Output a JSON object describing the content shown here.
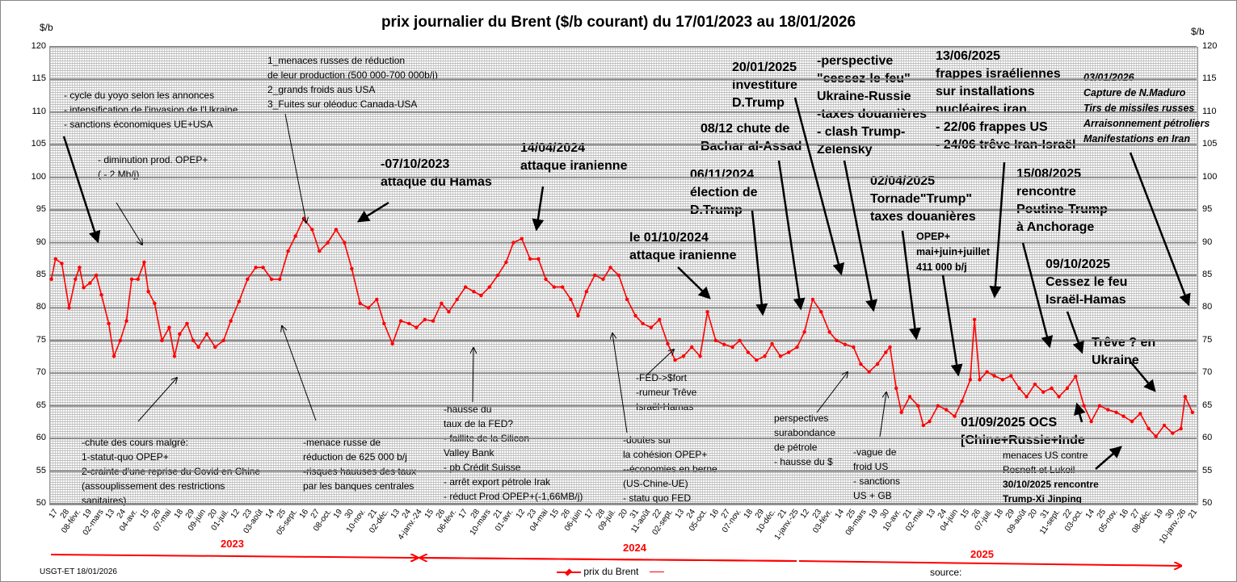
{
  "chart_data": {
    "type": "line",
    "title": "prix  journalier du  Brent ($/b courant) du 17/01/2023 au  18/01/2026",
    "ylabel_left": "$/b",
    "ylabel_right": "$/b",
    "ylim": [
      50,
      120
    ],
    "yticks": [
      50,
      55,
      60,
      65,
      70,
      75,
      80,
      85,
      90,
      95,
      100,
      105,
      110,
      115,
      120
    ],
    "x_unit": "days since 17/01/2023",
    "xlim": [
      0,
      1100
    ],
    "xtick_labels": [
      "17",
      "28",
      "08-févr.",
      "19",
      "02-mars",
      "13",
      "24",
      "04-avr.",
      "15",
      "26",
      "07-mai",
      "18",
      "29",
      "09-juin",
      "20",
      "01-juil.",
      "12",
      "23",
      "03-août",
      "14",
      "25",
      "05-sept.",
      "16",
      "27",
      "08-oct.",
      "19",
      "30",
      "10-nov.",
      "21",
      "02-déc.",
      "13",
      "24",
      "4-janv.-24",
      "15",
      "26",
      "06-févr.",
      "17",
      "28",
      "10-mars",
      "21",
      "01-avr.",
      "12",
      "23",
      "04-mai",
      "15",
      "26",
      "06-juin",
      "17",
      "28",
      "09-juil.",
      "20",
      "31",
      "11-août",
      "22",
      "02-sept.",
      "13",
      "24",
      "05-oct.",
      "16",
      "27",
      "07-nov.",
      "18",
      "29",
      "10-déc.",
      "21",
      "1-janv.-25",
      "12",
      "23",
      "03-févr.",
      "14",
      "25",
      "08-mars",
      "19",
      "30",
      "10-avr.",
      "21",
      "02-mai",
      "13",
      "24",
      "04-juin",
      "15",
      "26",
      "07-juil.",
      "18",
      "29",
      "09-août",
      "20",
      "31",
      "11-sept.",
      "22",
      "03-oct.",
      "14",
      "25",
      "05-nov.",
      "16",
      "27",
      "08-déc.",
      "19",
      "30",
      "10-janv.-26",
      "21"
    ],
    "years": [
      "2023",
      "2024",
      "2025"
    ],
    "series": [
      {
        "name": "prix du Brent",
        "color": "#ff0000",
        "x": [
          2,
          6,
          12,
          19,
          25,
          29,
          33,
          39,
          45,
          50,
          57,
          62,
          68,
          74,
          79,
          85,
          91,
          95,
          101,
          108,
          115,
          120,
          125,
          132,
          138,
          143,
          151,
          159,
          167,
          174,
          182,
          190,
          198,
          205,
          213,
          221,
          229,
          236,
          244,
          252,
          259,
          267,
          275,
          283,
          290,
          298,
          306,
          314,
          321,
          329,
          337,
          345,
          352,
          360,
          368,
          376,
          383,
          391,
          399,
          407,
          414,
          422,
          430,
          438,
          445,
          453,
          461,
          469,
          476,
          484,
          492,
          500,
          507,
          515,
          523,
          531,
          538,
          546,
          554,
          562,
          569,
          577,
          585,
          593,
          600,
          608,
          616,
          624,
          631,
          639,
          647,
          655,
          662,
          670,
          678,
          686,
          693,
          701,
          709,
          717,
          724,
          732,
          740,
          748,
          755,
          763,
          771,
          778,
          786,
          794,
          802,
          806,
          812,
          817,
          825,
          833,
          838,
          844,
          852,
          860,
          868,
          875,
          883,
          887,
          892,
          899,
          906,
          914,
          922,
          930,
          937,
          945,
          953,
          961,
          968,
          976,
          984,
          992,
          999,
          1007,
          1015,
          1023,
          1030,
          1038,
          1046,
          1054,
          1061,
          1069,
          1077,
          1085,
          1089,
          1096
        ],
        "values": [
          84.4,
          87.5,
          86.8,
          80.0,
          84.4,
          86.2,
          83.1,
          83.8,
          85.0,
          82.0,
          77.6,
          72.6,
          75.0,
          78.0,
          84.4,
          84.4,
          87.0,
          82.5,
          80.7,
          75.0,
          77.0,
          72.6,
          76.0,
          77.6,
          75.0,
          74.0,
          76.0,
          74.0,
          75.0,
          78.0,
          81.0,
          84.4,
          86.2,
          86.2,
          84.4,
          84.4,
          88.7,
          91.0,
          93.7,
          92.0,
          88.7,
          90.0,
          92.0,
          90.0,
          86.0,
          80.7,
          80.0,
          81.3,
          77.6,
          74.5,
          78.0,
          77.6,
          77.0,
          78.2,
          78.0,
          80.7,
          79.4,
          81.3,
          83.2,
          82.5,
          81.9,
          83.2,
          85.0,
          87.0,
          90.0,
          90.6,
          87.5,
          87.5,
          84.4,
          83.2,
          83.2,
          81.3,
          78.8,
          82.5,
          85.0,
          84.4,
          86.2,
          85.0,
          81.3,
          78.8,
          77.6,
          77.0,
          78.2,
          74.5,
          72.0,
          72.6,
          74.0,
          72.6,
          79.4,
          75.0,
          74.4,
          74.0,
          75.0,
          73.2,
          72.0,
          72.6,
          74.5,
          72.6,
          73.2,
          74.0,
          76.3,
          81.3,
          79.4,
          76.3,
          75.0,
          74.4,
          74.0,
          71.4,
          70.2,
          71.4,
          73.2,
          74.0,
          67.7,
          64.0,
          66.4,
          65.0,
          62.0,
          62.6,
          65.0,
          64.4,
          63.4,
          65.7,
          69.0,
          78.2,
          69.0,
          70.2,
          69.6,
          69.0,
          69.6,
          67.7,
          66.4,
          68.3,
          67.1,
          67.7,
          66.4,
          67.7,
          69.5,
          65.0,
          62.6,
          65.0,
          64.4,
          64.0,
          63.4,
          62.6,
          63.8,
          61.5,
          60.3,
          62.0,
          60.8,
          61.5,
          66.4,
          64.0
        ]
      }
    ],
    "legend": {
      "position": "bottom-center",
      "entries": [
        "prix du Brent",
        ""
      ]
    },
    "annotations": [
      {
        "lines": [
          "- cycle du yoyo selon les annonces",
          "- intensification de l'invasion de l'Ukraine",
          "- sanctions économiques UE+USA"
        ]
      },
      {
        "lines": [
          "1_menaces russes de réduction",
          "de leur production (500 000-700  000b/j)",
          "2_grands froids aus USA",
          "3_Fuites sur oléoduc Canada-USA"
        ]
      },
      {
        "lines": [
          "-  diminution prod. OPEP+",
          "( - 2 Mb/j)"
        ]
      },
      {
        "lines": [
          "-07/10/2023",
          "attaque  du Hamas"
        ]
      },
      {
        "lines": [
          "14/04/2024",
          "attaque iranienne"
        ]
      },
      {
        "lines": [
          "le 01/10/2024",
          "attaque iranienne"
        ]
      },
      {
        "lines": [
          "06/11/2024",
          "élection de",
          "D.Trump"
        ]
      },
      {
        "lines": [
          "08/12 chute de",
          "Bachar al-Assad"
        ]
      },
      {
        "lines": [
          "20/01/2025",
          "investiture",
          "D.Trump"
        ]
      },
      {
        "lines": [
          "-perspective",
          "\"cessez-le-feu\"",
          "Ukraine-Russie",
          "-taxes douanières",
          "- clash Trump-",
          "Zelensky"
        ]
      },
      {
        "lines": [
          "13/06/2025",
          "frappes  israéliennes",
          "sur installations",
          "nucléaires iran.",
          "- 22/06 frappes US",
          "- 24/06 trêve Iran-Israël"
        ]
      },
      {
        "lines": [
          "03/01/2026",
          "Capture de N.Maduro",
          "Tirs de missiles russes",
          "Arraisonnement pétroliers",
          "Manifestations en Iran"
        ]
      },
      {
        "lines": [
          "02/04/2025",
          "Tornade\"Trump\"",
          "taxes douanières"
        ]
      },
      {
        "lines": [
          "OPEP+",
          "mai+juin+juillet",
          "411 000 b/j"
        ]
      },
      {
        "lines": [
          "15/08/2025",
          "rencontre",
          "Poutine-Trump",
          "à Anchorage"
        ]
      },
      {
        "lines": [
          "09/10/2025",
          "Cessez le feu",
          "Israël-Hamas"
        ]
      },
      {
        "lines": [
          "Trêve ? en",
          "Ukraine"
        ]
      },
      {
        "lines": [
          "01/09/2025 OCS",
          "[Chine+Russie+Inde"
        ]
      },
      {
        "lines": [
          "menaces US contre",
          "Rosneft et Lukoil",
          "30/10/2025  rencontre",
          "Trump-Xi Jinping"
        ]
      },
      {
        "lines": [
          "-chute des cours malgré:",
          "1-statut-quo OPEP+",
          "2-crainte d'une reprise du Covid en Chine",
          "(assouplissement des restrictions",
          "sanitaires)"
        ]
      },
      {
        "lines": [
          "-menace russe de",
          "réduction de 625 000  b/j",
          "-risques hauuses des taux",
          "par les banques centrales"
        ]
      },
      {
        "lines": [
          "-hausse du",
          "taux de la FED?",
          "- faillite de la Silicon",
          "Valley Bank",
          "- pb Crédit Suisse",
          "- arrêt export pétrole Irak",
          "- réduct Prod OPEP+(-1,66MB/j)"
        ]
      },
      {
        "lines": [
          "-doutes sur",
          "la cohésion  OPEP+",
          "--économies en berne",
          "(US-Chine-UE)",
          "- statu quo FED"
        ]
      },
      {
        "lines": [
          "-FED->$fort",
          "-rumeur Trêve",
          "Israël-Hamas"
        ]
      },
      {
        "lines": [
          "perspectives",
          "surabondance",
          "de pétrole",
          "- hausse du $"
        ]
      },
      {
        "lines": [
          "-vague de",
          "froid US",
          "- sanctions",
          "US + GB"
        ]
      }
    ]
  },
  "footer": {
    "author": "USGT-ET  18/01/2026",
    "source": "source:"
  }
}
